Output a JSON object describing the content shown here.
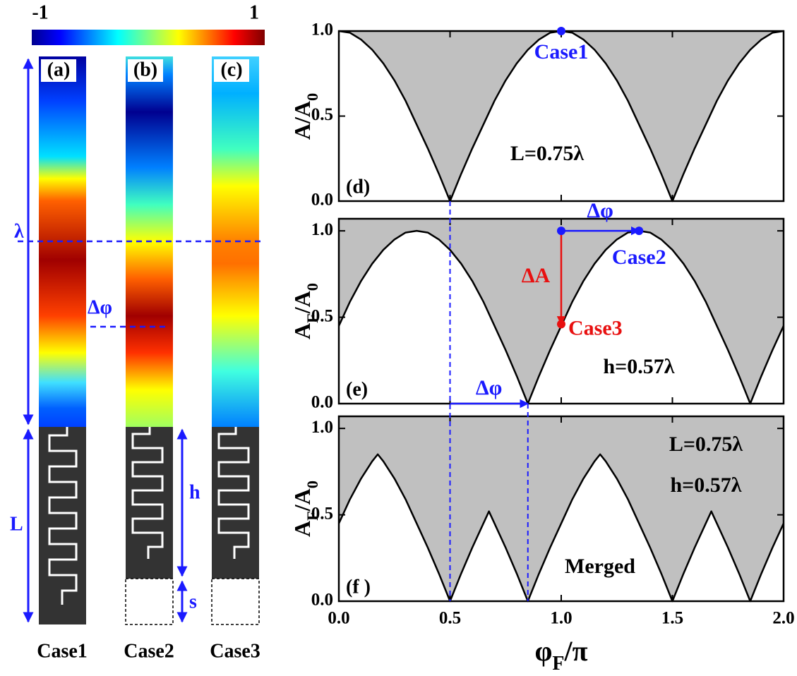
{
  "diagram": {
    "colorbar": {
      "min_label": "-1",
      "max_label": "1"
    },
    "panels": [
      {
        "label": "(a)",
        "case": "Case1"
      },
      {
        "label": "(b)",
        "case": "Case2"
      },
      {
        "label": "(c)",
        "case": "Case3"
      }
    ],
    "dims": {
      "lambda": "λ",
      "L": "L",
      "h": "h",
      "s": "s",
      "dphi": "Δφ"
    }
  },
  "chart_data": [
    {
      "type": "area",
      "line_color": "#000000",
      "fill_color": "#c0c0c0",
      "ylabel": [
        {
          "text": "A/A"
        },
        {
          "text": "0",
          "sub": true
        }
      ],
      "panel_label": "(d)",
      "texts": [
        "L=0.75λ"
      ],
      "x": [
        0,
        0.05,
        0.1,
        0.15,
        0.2,
        0.25,
        0.3,
        0.35,
        0.4,
        0.45,
        0.5,
        0.55,
        0.6,
        0.65,
        0.7,
        0.75,
        0.8,
        0.85,
        0.9,
        0.95,
        1,
        1.05,
        1.1,
        1.15,
        1.2,
        1.25,
        1.3,
        1.35,
        1.4,
        1.45,
        1.5,
        1.55,
        1.6,
        1.65,
        1.7,
        1.75,
        1.8,
        1.85,
        1.9,
        1.95,
        2
      ],
      "values": [
        1,
        0.99,
        0.95,
        0.89,
        0.81,
        0.71,
        0.59,
        0.45,
        0.31,
        0.16,
        0,
        0.16,
        0.31,
        0.45,
        0.59,
        0.71,
        0.81,
        0.89,
        0.95,
        0.99,
        1,
        0.99,
        0.95,
        0.89,
        0.81,
        0.71,
        0.59,
        0.45,
        0.31,
        0.16,
        0,
        0.16,
        0.31,
        0.45,
        0.59,
        0.71,
        0.81,
        0.89,
        0.95,
        0.99,
        1
      ],
      "xlim": [
        0,
        2
      ],
      "ylim": [
        0,
        1
      ],
      "xticks": [
        0,
        0.5,
        1,
        1.5,
        2
      ],
      "yticks": [
        {
          "value": 0,
          "label": "0.0"
        },
        {
          "value": 0.5,
          "label": "0.5"
        },
        {
          "value": 1,
          "label": "1.0"
        }
      ],
      "points": [
        {
          "x": 1,
          "y": 1,
          "label": "Case1",
          "color": "#1a1aff"
        }
      ],
      "arrows": []
    },
    {
      "type": "area",
      "line_color": "#000000",
      "fill_color": "#c0c0c0",
      "ylabel": [
        {
          "text": "A"
        },
        {
          "text": "F",
          "sub": true
        },
        {
          "text": "/A"
        },
        {
          "text": "0",
          "sub": true
        }
      ],
      "panel_label": "(e)",
      "texts": [
        "h=0.57λ"
      ],
      "x": [
        0,
        0.05,
        0.1,
        0.15,
        0.2,
        0.25,
        0.3,
        0.35,
        0.4,
        0.45,
        0.5,
        0.55,
        0.6,
        0.65,
        0.7,
        0.75,
        0.8,
        0.85,
        0.9,
        0.95,
        1,
        1.05,
        1.1,
        1.15,
        1.2,
        1.25,
        1.3,
        1.35,
        1.4,
        1.45,
        1.5,
        1.55,
        1.6,
        1.65,
        1.7,
        1.75,
        1.8,
        1.85,
        1.9,
        1.95,
        2
      ],
      "values": [
        0.45,
        0.59,
        0.71,
        0.81,
        0.89,
        0.95,
        0.99,
        1,
        0.99,
        0.95,
        0.89,
        0.81,
        0.71,
        0.59,
        0.45,
        0.31,
        0.16,
        0,
        0.16,
        0.31,
        0.45,
        0.59,
        0.71,
        0.81,
        0.89,
        0.95,
        0.99,
        1,
        0.99,
        0.95,
        0.89,
        0.81,
        0.71,
        0.59,
        0.45,
        0.31,
        0.16,
        0,
        0.16,
        0.31,
        0.45
      ],
      "xlim": [
        0,
        2
      ],
      "ylim": [
        0,
        1.07
      ],
      "xticks": [
        0,
        0.5,
        1,
        1.5,
        2
      ],
      "yticks": [
        {
          "value": 0,
          "label": "0.0"
        },
        {
          "value": 0.5,
          "label": "0.5"
        },
        {
          "value": 1,
          "label": "1.0"
        }
      ],
      "points": [
        {
          "x": 1,
          "y": 1,
          "color": "#1a1aff"
        },
        {
          "x": 1.35,
          "y": 1,
          "label": "Case2",
          "color": "#1a1aff"
        },
        {
          "x": 1,
          "y": 0.46,
          "label": "Case3",
          "color": "#e81010"
        }
      ],
      "arrows": [
        {
          "from": [
            1,
            1
          ],
          "to": [
            1.35,
            1
          ],
          "label": "Δφ",
          "color": "#1a1aff"
        },
        {
          "from": [
            1,
            1
          ],
          "to": [
            1,
            0.46
          ],
          "label": "ΔA",
          "color": "#e81010"
        },
        {
          "from": [
            0.5,
            0
          ],
          "to": [
            0.85,
            0
          ],
          "label": "Δφ",
          "color": "#1a1aff"
        }
      ]
    },
    {
      "type": "area",
      "line_color": "#000000",
      "fill_color": "#c0c0c0",
      "ylabel": [
        {
          "text": "A"
        },
        {
          "text": "F",
          "sub": true
        },
        {
          "text": "/A"
        },
        {
          "text": "0",
          "sub": true
        }
      ],
      "xlabel": [
        {
          "text": "φ"
        },
        {
          "text": "F",
          "sub": true
        },
        {
          "text": "/π"
        }
      ],
      "panel_label": "(f )",
      "texts": [
        "L=0.75λ",
        "h=0.57λ",
        "Merged"
      ],
      "x": [
        0,
        0.05,
        0.1,
        0.15,
        0.175,
        0.2,
        0.25,
        0.3,
        0.35,
        0.4,
        0.45,
        0.5,
        0.55,
        0.6,
        0.65,
        0.675,
        0.7,
        0.75,
        0.8,
        0.85,
        0.9,
        0.95,
        1,
        1.05,
        1.1,
        1.15,
        1.175,
        1.2,
        1.25,
        1.3,
        1.35,
        1.4,
        1.45,
        1.5,
        1.55,
        1.6,
        1.65,
        1.675,
        1.7,
        1.75,
        1.8,
        1.85,
        1.9,
        1.95,
        2
      ],
      "values": [
        0.45,
        0.59,
        0.71,
        0.81,
        0.85,
        0.81,
        0.71,
        0.59,
        0.45,
        0.31,
        0.16,
        0,
        0.16,
        0.31,
        0.45,
        0.52,
        0.45,
        0.31,
        0.16,
        0,
        0.16,
        0.31,
        0.45,
        0.59,
        0.71,
        0.81,
        0.85,
        0.81,
        0.71,
        0.59,
        0.45,
        0.31,
        0.16,
        0,
        0.16,
        0.31,
        0.45,
        0.52,
        0.45,
        0.31,
        0.16,
        0,
        0.16,
        0.31,
        0.45
      ],
      "xlim": [
        0,
        2
      ],
      "ylim": [
        0,
        1.07
      ],
      "xticks": [
        {
          "value": 0,
          "label": "0.0"
        },
        {
          "value": 0.5,
          "label": "0.5"
        },
        {
          "value": 1,
          "label": "1.0"
        },
        {
          "value": 1.5,
          "label": "1.5"
        },
        {
          "value": 2,
          "label": "2.0"
        }
      ],
      "yticks": [
        {
          "value": 0,
          "label": "0.0"
        },
        {
          "value": 0.5,
          "label": "0.5"
        },
        {
          "value": 1,
          "label": "1.0"
        }
      ],
      "guides": [
        0.5,
        0.85
      ],
      "points": [],
      "arrows": []
    }
  ]
}
